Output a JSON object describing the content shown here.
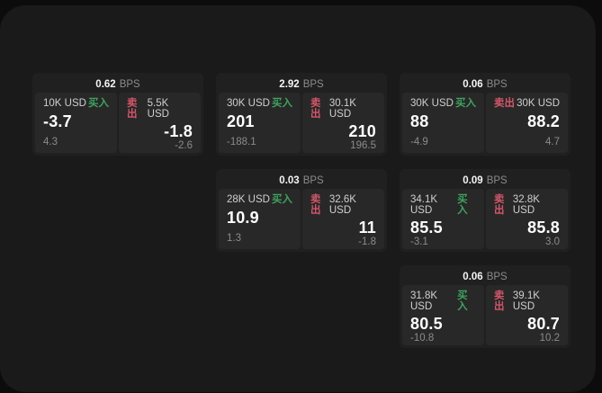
{
  "labels": {
    "buy": "买入",
    "sell": "卖出",
    "bps_unit": "BPS"
  },
  "colors": {
    "buy_green": "#3da35d",
    "sell_red": "#d25668"
  },
  "cards": [
    {
      "row": 0,
      "col": 0,
      "bps": "0.62",
      "buy": {
        "size": "10K USD",
        "value": "-3.7",
        "delta": "4.3"
      },
      "sell": {
        "size": "5.5K USD",
        "value": "-1.8",
        "delta": "-2.6"
      }
    },
    {
      "row": 0,
      "col": 1,
      "bps": "2.92",
      "buy": {
        "size": "30K USD",
        "value": "201",
        "delta": "-188.1"
      },
      "sell": {
        "size": "30.1K USD",
        "value": "210",
        "delta": "196.5"
      }
    },
    {
      "row": 0,
      "col": 2,
      "bps": "0.06",
      "buy": {
        "size": "30K USD",
        "value": "88",
        "delta": "-4.9"
      },
      "sell": {
        "size": "30K USD",
        "value": "88.2",
        "delta": "4.7"
      }
    },
    {
      "row": 1,
      "col": 1,
      "bps": "0.03",
      "buy": {
        "size": "28K USD",
        "value": "10.9",
        "delta": "1.3"
      },
      "sell": {
        "size": "32.6K USD",
        "value": "11",
        "delta": "-1.8"
      }
    },
    {
      "row": 1,
      "col": 2,
      "bps": "0.09",
      "buy": {
        "size": "34.1K USD",
        "value": "85.5",
        "delta": "-3.1"
      },
      "sell": {
        "size": "32.8K USD",
        "value": "85.8",
        "delta": "3.0"
      }
    },
    {
      "row": 2,
      "col": 2,
      "bps": "0.06",
      "buy": {
        "size": "31.8K USD",
        "value": "80.5",
        "delta": "-10.8"
      },
      "sell": {
        "size": "39.1K USD",
        "value": "80.7",
        "delta": "10.2"
      }
    }
  ]
}
